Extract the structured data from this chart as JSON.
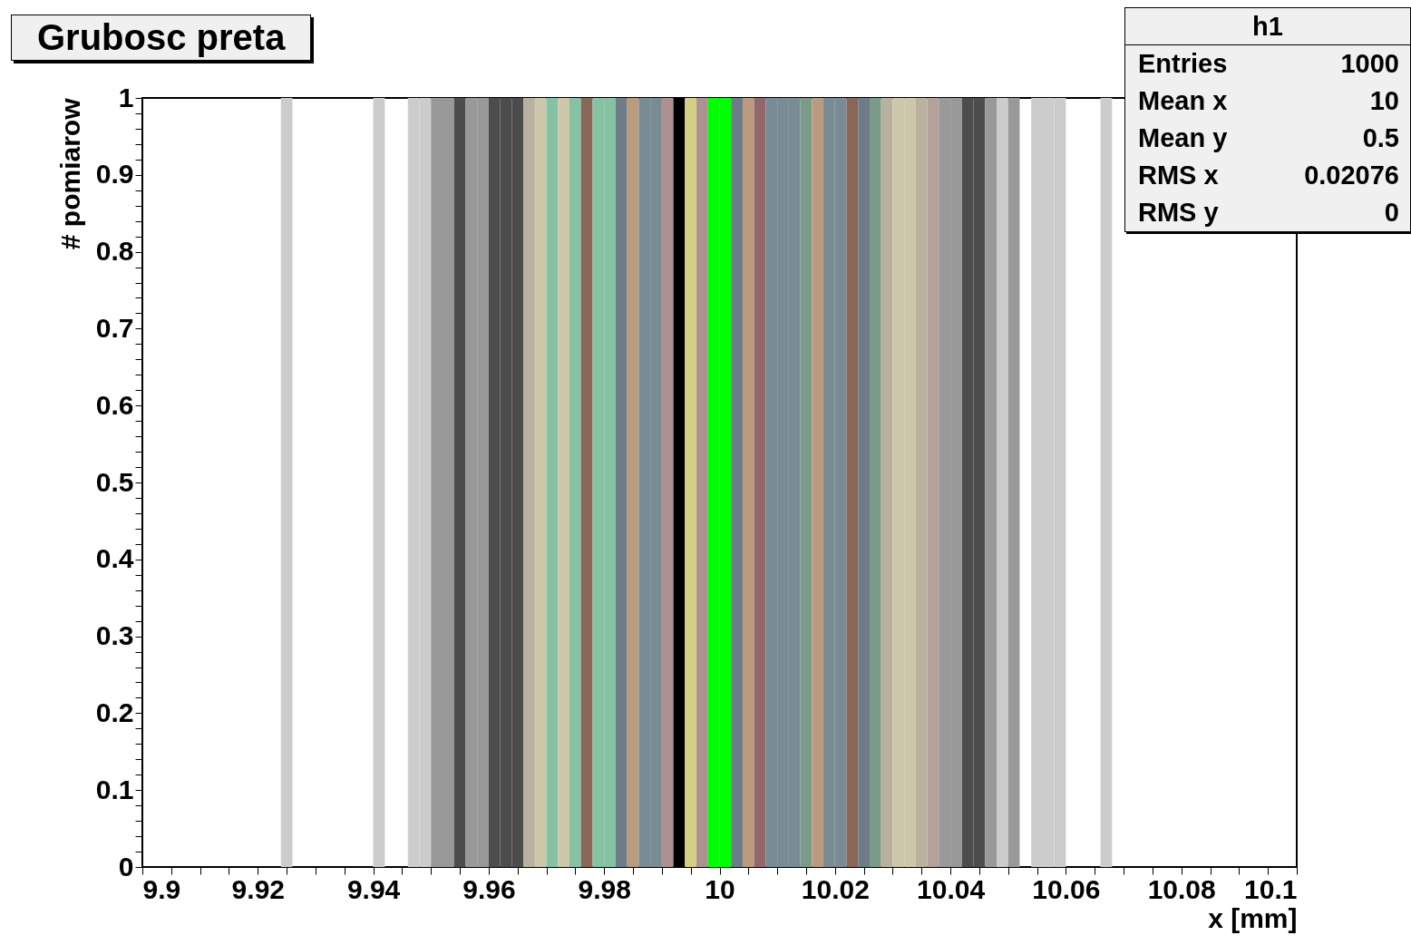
{
  "chart_data": {
    "type": "histogram",
    "title": "Grubosc preta",
    "xlabel": "x [mm]",
    "ylabel": "# pomiarow",
    "bins": [
      9.9,
      9.902,
      9.904,
      9.906,
      9.908,
      9.91,
      9.912,
      9.914,
      9.916,
      9.918,
      9.92,
      9.922,
      9.924,
      9.926,
      9.928,
      9.93,
      9.932,
      9.934,
      9.936,
      9.938,
      9.94,
      9.942,
      9.944,
      9.946,
      9.948,
      9.95,
      9.952,
      9.954,
      9.956,
      9.958,
      9.96,
      9.962,
      9.964,
      9.966,
      9.968,
      9.97,
      9.972,
      9.974,
      9.976,
      9.978,
      9.98,
      9.982,
      9.984,
      9.986,
      9.988,
      9.99,
      9.992,
      9.994,
      9.996,
      9.998,
      10,
      10.002,
      10.004,
      10.006,
      10.008,
      10.01,
      10.012,
      10.014,
      10.016,
      10.018,
      10.02,
      10.022,
      10.024,
      10.026,
      10.028,
      10.03,
      10.032,
      10.034,
      10.036,
      10.038,
      10.04,
      10.042,
      10.044,
      10.046,
      10.048,
      10.05,
      10.052,
      10.054,
      10.056,
      10.058,
      10.06,
      10.062,
      10.064,
      10.066,
      10.068,
      10.07,
      10.072,
      10.074,
      10.076,
      10.078,
      10.08,
      10.082,
      10.084,
      10.086,
      10.088,
      10.09,
      10.092,
      10.094,
      10.096,
      10.098,
      10.1
    ],
    "values": [
      0,
      0,
      0,
      0,
      0,
      0,
      0,
      0,
      0,
      0,
      0,
      0,
      1,
      0,
      0,
      0,
      0,
      0,
      0,
      0,
      1,
      0,
      0,
      1,
      1,
      1,
      1,
      1,
      1,
      1,
      1,
      1,
      1,
      1,
      1,
      1,
      1,
      1,
      1,
      1,
      1,
      1,
      1,
      1,
      1,
      1,
      1,
      1,
      1,
      1,
      1,
      1,
      1,
      1,
      1,
      1,
      1,
      1,
      1,
      1,
      1,
      1,
      1,
      1,
      1,
      1,
      1,
      1,
      1,
      1,
      1,
      1,
      1,
      1,
      1,
      1,
      0,
      1,
      1,
      1,
      0,
      0,
      0,
      1,
      0,
      0,
      0,
      0,
      0,
      0,
      0,
      0,
      0,
      0,
      0,
      0,
      0,
      0,
      0,
      0
    ],
    "colors": [
      null,
      null,
      null,
      null,
      null,
      null,
      null,
      null,
      null,
      null,
      null,
      null,
      "#cccccc",
      null,
      null,
      null,
      null,
      null,
      null,
      null,
      "#cccccc",
      null,
      null,
      "#cccccc",
      "#cccccc",
      "#999999",
      "#999999",
      "#4c4c4c",
      "#999999",
      "#999999",
      "#4c4c4c",
      "#4c4c4c",
      "#4c4c4c",
      "#bab09f",
      "#ccc7a9",
      "#85c1a3",
      "#ccc7a9",
      "#85c1a3",
      "#8a6656",
      "#85c1a3",
      "#85c1a3",
      "#6e7b88",
      "#bb9b7d",
      "#798b94",
      "#798b94",
      "#ad9192",
      "#000000",
      "#d3cf85",
      "#ad9192",
      "#00ff00",
      "#00ff00",
      "#6e7b88",
      "#bb9b7d",
      "#91676d",
      "#798b94",
      "#798b94",
      "#798b94",
      "#7b9b8a",
      "#bb9b7d",
      "#798b94",
      "#798b94",
      "#8a6656",
      "#6e7b88",
      "#7b9b8a",
      "#bab09f",
      "#ccc7a9",
      "#ccc7a9",
      "#bab09f",
      "#b4a19a",
      "#999999",
      "#999999",
      "#4c4c4c",
      "#4c4c4c",
      "#999999",
      "#cccccc",
      "#999999",
      null,
      "#cccccc",
      "#cccccc",
      "#cccccc",
      null,
      null,
      null,
      "#cccccc",
      null,
      null,
      null,
      null,
      null,
      null,
      null,
      null,
      null,
      null,
      null,
      null,
      null,
      null,
      null,
      null
    ],
    "xlim": [
      9.9,
      10.1
    ],
    "ylim": [
      0,
      1
    ],
    "xticks": [
      9.9,
      {
        "value": 9.905,
        "label": null
      },
      {
        "value": 9.91,
        "label": null
      },
      {
        "value": 9.915,
        "label": null
      },
      9.92,
      {
        "value": 9.925,
        "label": null
      },
      {
        "value": 9.93,
        "label": null
      },
      {
        "value": 9.935,
        "label": null
      },
      9.94,
      {
        "value": 9.945,
        "label": null
      },
      {
        "value": 9.95,
        "label": null
      },
      {
        "value": 9.955,
        "label": null
      },
      9.96,
      {
        "value": 9.965,
        "label": null
      },
      {
        "value": 9.97,
        "label": null
      },
      {
        "value": 9.975,
        "label": null
      },
      9.98,
      {
        "value": 9.985,
        "label": null
      },
      {
        "value": 9.99,
        "label": null
      },
      {
        "value": 9.995,
        "label": null
      },
      10,
      {
        "value": 10.005,
        "label": null
      },
      {
        "value": 10.01,
        "label": null
      },
      {
        "value": 10.015,
        "label": null
      },
      10.02,
      {
        "value": 10.025,
        "label": null
      },
      {
        "value": 10.03,
        "label": null
      },
      {
        "value": 10.035,
        "label": null
      },
      10.04,
      {
        "value": 10.045,
        "label": null
      },
      {
        "value": 10.05,
        "label": null
      },
      {
        "value": 10.055,
        "label": null
      },
      10.06,
      {
        "value": 10.065,
        "label": null
      },
      {
        "value": 10.07,
        "label": null
      },
      {
        "value": 10.075,
        "label": null
      },
      10.08,
      {
        "value": 10.085,
        "label": null
      },
      {
        "value": 10.09,
        "label": null
      },
      {
        "value": 10.095,
        "label": null
      },
      10.1
    ],
    "yticks": [
      0,
      {
        "value": 0.02,
        "label": null
      },
      {
        "value": 0.04,
        "label": null
      },
      {
        "value": 0.06,
        "label": null
      },
      {
        "value": 0.08,
        "label": null
      },
      0.1,
      {
        "value": 0.12,
        "label": null
      },
      {
        "value": 0.14,
        "label": null
      },
      {
        "value": 0.16,
        "label": null
      },
      {
        "value": 0.18,
        "label": null
      },
      0.2,
      {
        "value": 0.22,
        "label": null
      },
      {
        "value": 0.24,
        "label": null
      },
      {
        "value": 0.26,
        "label": null
      },
      {
        "value": 0.28,
        "label": null
      },
      0.3,
      {
        "value": 0.32,
        "label": null
      },
      {
        "value": 0.34,
        "label": null
      },
      {
        "value": 0.36,
        "label": null
      },
      {
        "value": 0.38,
        "label": null
      },
      0.4,
      {
        "value": 0.42,
        "label": null
      },
      {
        "value": 0.44,
        "label": null
      },
      {
        "value": 0.46,
        "label": null
      },
      {
        "value": 0.48,
        "label": null
      },
      0.5,
      {
        "value": 0.52,
        "label": null
      },
      {
        "value": 0.54,
        "label": null
      },
      {
        "value": 0.56,
        "label": null
      },
      {
        "value": 0.58,
        "label": null
      },
      0.6,
      {
        "value": 0.62,
        "label": null
      },
      {
        "value": 0.64,
        "label": null
      },
      {
        "value": 0.66,
        "label": null
      },
      {
        "value": 0.68,
        "label": null
      },
      0.7,
      {
        "value": 0.72,
        "label": null
      },
      {
        "value": 0.74,
        "label": null
      },
      {
        "value": 0.76,
        "label": null
      },
      {
        "value": 0.78,
        "label": null
      },
      0.8,
      {
        "value": 0.82,
        "label": null
      },
      {
        "value": 0.84,
        "label": null
      },
      {
        "value": 0.86,
        "label": null
      },
      {
        "value": 0.88,
        "label": null
      },
      0.9,
      {
        "value": 0.92,
        "label": null
      },
      {
        "value": 0.94,
        "label": null
      },
      {
        "value": 0.96,
        "label": null
      },
      {
        "value": 0.98,
        "label": null
      },
      1
    ],
    "annotations": [
      "h1",
      "Entries 1000",
      "Mean x 10",
      "Mean y 0.5",
      "RMS x 0.02076",
      "RMS y 0"
    ]
  }
}
